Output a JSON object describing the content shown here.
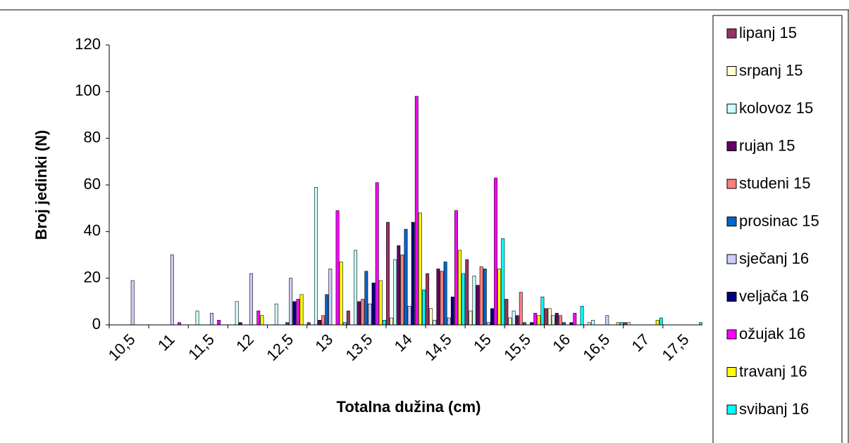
{
  "chart_data": {
    "type": "bar",
    "x_label": "Totalna dužina (cm)",
    "y_label": "Broj jedinki (N)",
    "categories": [
      "10,5",
      "11",
      "11,5",
      "12",
      "12,5",
      "13",
      "13,5",
      "14",
      "14,5",
      "15",
      "15,5",
      "16",
      "16,5",
      "17",
      "17,5"
    ],
    "ylim": [
      0,
      120
    ],
    "yticks": [
      0,
      20,
      40,
      60,
      80,
      100,
      120
    ],
    "series": [
      {
        "name": "lipanj 15",
        "color": "#993366",
        "values": [
          0,
          0,
          0,
          0,
          0,
          1,
          6,
          44,
          22,
          28,
          11,
          7,
          0,
          1,
          0
        ]
      },
      {
        "name": "srpanj 15",
        "color": "#ffffcc",
        "values": [
          0,
          0,
          0,
          0,
          0,
          0,
          0,
          3,
          7,
          6,
          3,
          7,
          1,
          1,
          0
        ]
      },
      {
        "name": "kolovoz 15",
        "color": "#ccffff",
        "values": [
          0,
          0,
          6,
          10,
          9,
          59,
          32,
          28,
          2,
          21,
          6,
          4,
          2,
          0,
          0
        ]
      },
      {
        "name": "rujan 15",
        "color": "#660066",
        "values": [
          0,
          0,
          0,
          1,
          0,
          2,
          10,
          34,
          24,
          17,
          4,
          5,
          0,
          0,
          0
        ]
      },
      {
        "name": "studeni 15",
        "color": "#ff8080",
        "values": [
          0,
          0,
          0,
          0,
          0,
          4,
          11,
          30,
          23,
          25,
          14,
          4,
          0,
          0,
          0
        ]
      },
      {
        "name": "prosinac 15",
        "color": "#0066cc",
        "values": [
          0,
          0,
          0,
          0,
          1,
          13,
          23,
          41,
          27,
          24,
          1,
          1,
          0,
          0,
          0
        ]
      },
      {
        "name": "sječanj 16",
        "color": "#ccccff",
        "values": [
          19,
          30,
          5,
          22,
          20,
          24,
          9,
          8,
          3,
          1,
          0,
          0,
          4,
          0,
          0
        ]
      },
      {
        "name": "veljača 16",
        "color": "#000080",
        "values": [
          0,
          0,
          0,
          0,
          10,
          0,
          18,
          44,
          12,
          7,
          1,
          1,
          0,
          0,
          0
        ]
      },
      {
        "name": "ožujak 16",
        "color": "#ff00ff",
        "values": [
          0,
          1,
          2,
          6,
          11,
          49,
          61,
          98,
          49,
          63,
          5,
          5,
          0,
          0,
          0
        ]
      },
      {
        "name": "travanj 16",
        "color": "#ffff00",
        "values": [
          0,
          0,
          0,
          4,
          13,
          27,
          19,
          48,
          32,
          24,
          4,
          0,
          1,
          2,
          0
        ]
      },
      {
        "name": "svibanj 16",
        "color": "#00ffff",
        "values": [
          0,
          0,
          0,
          0,
          0,
          1,
          2,
          15,
          22,
          37,
          12,
          8,
          1,
          3,
          1
        ]
      }
    ]
  }
}
